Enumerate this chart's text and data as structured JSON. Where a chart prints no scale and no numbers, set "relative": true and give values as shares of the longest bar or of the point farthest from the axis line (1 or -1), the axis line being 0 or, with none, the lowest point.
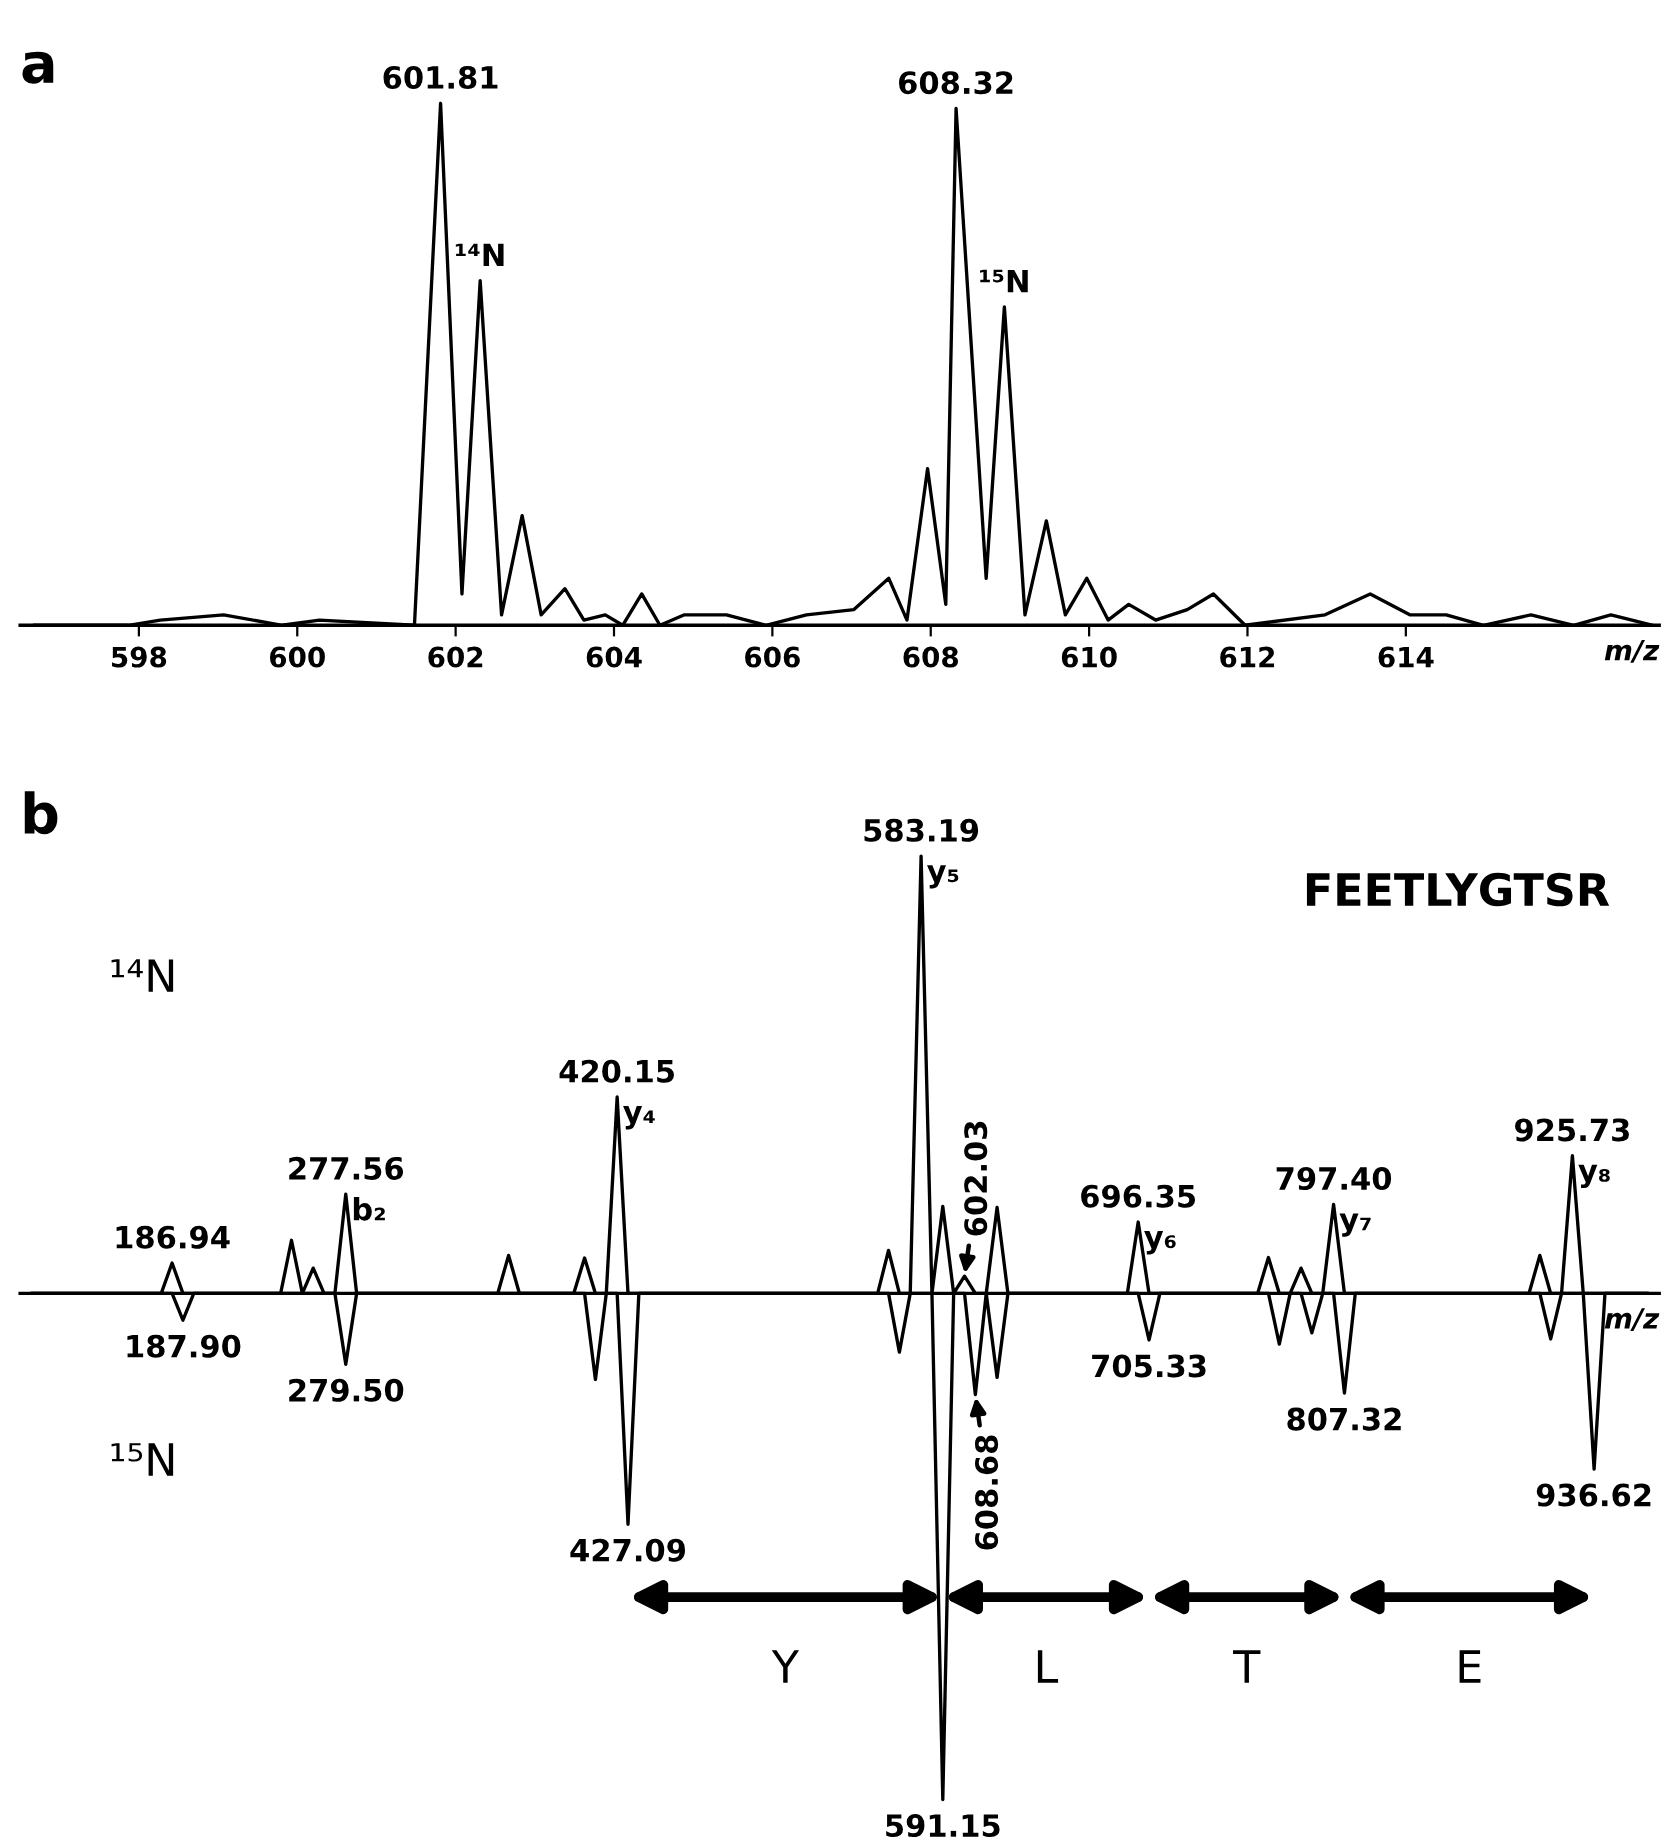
{
  "chart_data": [
    {
      "type": "line",
      "title": "a",
      "xlabel": "m/z",
      "relative": true,
      "tick_labels": "x",
      "xlim": [
        596.5,
        617.2
      ],
      "xticks": [
        598,
        600,
        602,
        604,
        606,
        608,
        610,
        612,
        614
      ],
      "series": [
        {
          "color": "#000000",
          "x": [
            596.67,
            597.87,
            598.27,
            599.07,
            599.81,
            600.28,
            601.48,
            601.81,
            602.08,
            602.31,
            602.58,
            602.84,
            603.08,
            603.38,
            603.62,
            603.89,
            604.11,
            604.35,
            604.58,
            604.89,
            605.42,
            605.92,
            606.43,
            607.03,
            607.47,
            607.7,
            607.96,
            608.19,
            608.32,
            608.7,
            608.93,
            609.19,
            609.46,
            609.7,
            609.97,
            610.24,
            610.5,
            610.84,
            611.24,
            611.57,
            611.97,
            612.98,
            613.55,
            614.05,
            614.51,
            614.98,
            615.58,
            616.12,
            616.59,
            617.12
          ],
          "values": [
            0.0,
            0.0,
            0.01,
            0.02,
            0.0,
            0.01,
            0.0,
            1.0,
            0.06,
            0.66,
            0.02,
            0.21,
            0.02,
            0.07,
            0.01,
            0.02,
            0.0,
            0.06,
            0.0,
            0.02,
            0.02,
            0.0,
            0.02,
            0.03,
            0.09,
            0.01,
            0.3,
            0.04,
            0.99,
            0.09,
            0.61,
            0.02,
            0.2,
            0.02,
            0.09,
            0.01,
            0.04,
            0.01,
            0.03,
            0.06,
            0.0,
            0.02,
            0.06,
            0.02,
            0.02,
            0.0,
            0.02,
            0.0,
            0.02,
            0.0
          ]
        }
      ],
      "annotations": [
        {
          "text": "601.81",
          "x": 601.81,
          "y": 1.0
        },
        {
          "text": "¹⁴N",
          "x": 602.31,
          "y": 0.66
        },
        {
          "text": "608.32",
          "x": 608.32,
          "y": 0.99
        },
        {
          "text": "¹⁵N",
          "x": 608.93,
          "y": 0.61
        }
      ]
    },
    {
      "type": "line",
      "title": "b",
      "xlabel": "m/z",
      "relative": true,
      "tick_labels": false,
      "categories": [
        null,
        null,
        null,
        null,
        null,
        null,
        null,
        null,
        null,
        null,
        null,
        null,
        null,
        null,
        null,
        null,
        null,
        null,
        null,
        null,
        null,
        null,
        null,
        null,
        null,
        null,
        null,
        null,
        null,
        null,
        null,
        null,
        null,
        null,
        null,
        null,
        null,
        null,
        null,
        null,
        null,
        null,
        null,
        null,
        null,
        null,
        null,
        null,
        null,
        null,
        null,
        null,
        null,
        null,
        null,
        null,
        null,
        null,
        null,
        null,
        null,
        null,
        null,
        null,
        null,
        null,
        null,
        null,
        null,
        null,
        null,
        null,
        null,
        null,
        null,
        null,
        null,
        null,
        null,
        null,
        null,
        null,
        null,
        null,
        null,
        null,
        null,
        null,
        null,
        null,
        null,
        null,
        null,
        null,
        null,
        null,
        null,
        null,
        null,
        null,
        null,
        null,
        null,
        null,
        null,
        null,
        null,
        null,
        null,
        null,
        null,
        null,
        null,
        null,
        null,
        null,
        null,
        null,
        null,
        null,
        null,
        null,
        null,
        null,
        null,
        null,
        null,
        null,
        null,
        null,
        null,
        null,
        null,
        null,
        null,
        null,
        null,
        null,
        null,
        null,
        null,
        null,
        null,
        null,
        null,
        null,
        null,
        null,
        null,
        null
      ],
      "series": [
        {
          "color": "#000000",
          "values": [
            0,
            0,
            0,
            0,
            0,
            0,
            0,
            0,
            0,
            0,
            0,
            0,
            0,
            0.06,
            0,
            0,
            0,
            0,
            0,
            0,
            0,
            0,
            0,
            0,
            0.105,
            0,
            0.05,
            0,
            0,
            0.196,
            0,
            0,
            0,
            0,
            0,
            0,
            0,
            0,
            0,
            0,
            0,
            0,
            0,
            0,
            0.075,
            0,
            0,
            0,
            0,
            0,
            0,
            0.07,
            0,
            0,
            0.388,
            0,
            0,
            0,
            0,
            0,
            0,
            0,
            0,
            0,
            0,
            0,
            0,
            0,
            0,
            0,
            0,
            0,
            0,
            0,
            0,
            0,
            0,
            0,
            0,
            0.085,
            0,
            0,
            0.864,
            0,
            0.172,
            0,
            0.034,
            0,
            0,
            0.17,
            0,
            0,
            0,
            0,
            0,
            0,
            0,
            0,
            0,
            0,
            0,
            0,
            0.141,
            0,
            0,
            0,
            0,
            0,
            0,
            0,
            0,
            0,
            0,
            0,
            0.071,
            0,
            0,
            0.05,
            0,
            0,
            0.176,
            0,
            0,
            0,
            0,
            0,
            0,
            0,
            0,
            0,
            0,
            0,
            0,
            0,
            0,
            0,
            0,
            0,
            0,
            0.075,
            0,
            0,
            0.272,
            0,
            0,
            0,
            0,
            0,
            0,
            0
          ]
        },
        {
          "color": "#000000",
          "values": [
            0,
            0,
            0,
            0,
            0,
            0,
            0,
            0,
            0,
            0,
            0,
            0,
            0,
            0,
            -0.053,
            0,
            0,
            0,
            0,
            0,
            0,
            0,
            0,
            0,
            0,
            0,
            0,
            0,
            0,
            -0.14,
            0,
            0,
            0,
            0,
            0,
            0,
            0,
            0,
            0,
            0,
            0,
            0,
            0,
            0,
            0,
            0,
            0,
            0,
            0,
            0,
            0,
            0,
            -0.17,
            0,
            0,
            -0.456,
            0,
            0,
            0,
            0,
            0,
            0,
            0,
            0,
            0,
            0,
            0,
            0,
            0,
            0,
            0,
            0,
            0,
            0,
            0,
            0,
            0,
            0,
            0,
            0,
            -0.116,
            0,
            0,
            0,
            -1,
            0,
            0,
            -0.2,
            0,
            -0.166,
            0,
            0,
            0,
            0,
            0,
            0,
            0,
            0,
            0,
            0,
            0,
            0,
            0,
            -0.092,
            0,
            0,
            0,
            0,
            0,
            0,
            0,
            0,
            0,
            0,
            0,
            -0.1,
            0,
            0,
            -0.078,
            0,
            0,
            -0.197,
            0,
            0,
            0,
            0,
            0,
            0,
            0,
            0,
            0,
            0,
            0,
            0,
            0,
            0,
            0,
            0,
            0,
            0,
            -0.09,
            0,
            0,
            0,
            -0.347,
            0,
            0,
            0,
            0,
            0
          ]
        }
      ],
      "annotations": [
        {
          "text": "186.94",
          "y": 0.06
        },
        {
          "text": "187.90",
          "y": -0.053
        },
        {
          "text": "277.56\nb₂",
          "y": 0.196
        },
        {
          "text": "279.50",
          "y": -0.14
        },
        {
          "text": "420.15\ny₄",
          "y": 0.388
        },
        {
          "text": "427.09",
          "y": -0.456
        },
        {
          "text": "583.19\ny₅",
          "y": 0.864
        },
        {
          "text": "591.15",
          "y": -1
        },
        {
          "text": "602.03",
          "y": 0.034
        },
        {
          "text": "608.68",
          "y": -0.2
        },
        {
          "text": "696.35\ny₆",
          "y": 0.141
        },
        {
          "text": "705.33",
          "y": -0.092
        },
        {
          "text": "797.40\ny₇",
          "y": 0.176
        },
        {
          "text": "807.32",
          "y": -0.197
        },
        {
          "text": "925.73\ny₈",
          "y": 0.272
        },
        {
          "text": "936.62",
          "y": -0.347
        },
        "FEETLYGTSR",
        "¹⁴N",
        "¹⁵N",
        "Y",
        "L",
        "T",
        "E"
      ]
    }
  ]
}
